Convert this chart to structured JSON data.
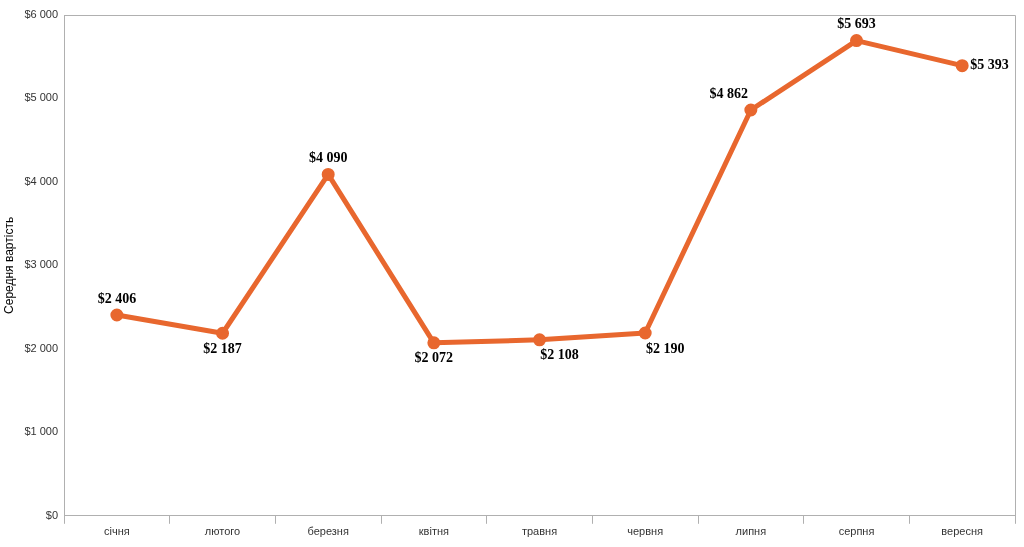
{
  "chart_data": {
    "type": "line",
    "ylabel": "Середня вартість",
    "categories": [
      "січня",
      "лютого",
      "березня",
      "квітня",
      "травня",
      "червня",
      "липня",
      "серпня",
      "вересня"
    ],
    "series": [
      {
        "color": "#e8672e",
        "values": [
          2406,
          2187,
          4090,
          2072,
          2108,
          2190,
          4862,
          5693,
          5393
        ],
        "value_labels": [
          "$2 406",
          "$2 187",
          "$4 090",
          "$2 072",
          "$2 108",
          "$2 190",
          "$4 862",
          "$5 693",
          "$5 393"
        ]
      }
    ],
    "ylim": [
      0,
      6000
    ],
    "yticks": [
      {
        "value": 0,
        "label": "$0"
      },
      {
        "value": 1000,
        "label": "$1 000"
      },
      {
        "value": 2000,
        "label": "$2 000"
      },
      {
        "value": 3000,
        "label": "$3 000"
      },
      {
        "value": 4000,
        "label": "$4 000"
      },
      {
        "value": 5000,
        "label": "$5 000"
      },
      {
        "value": 6000,
        "label": "$6 000"
      }
    ],
    "marker": "circle",
    "line_style": "solid",
    "grid": false,
    "legend": false
  }
}
